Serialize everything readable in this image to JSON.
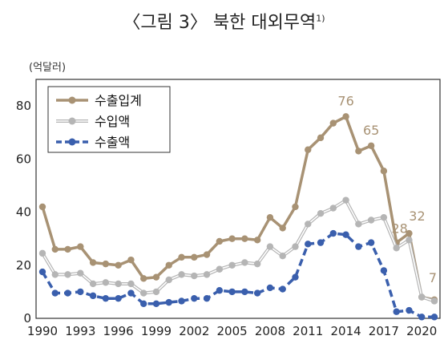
{
  "chart_data": {
    "type": "line",
    "title": "〈그림 3〉 북한 대외무역",
    "title_footnote": "1)",
    "unit_label": "(억달러)",
    "ylim": [
      0,
      90
    ],
    "y_ticks": [
      0,
      20,
      40,
      60,
      80
    ],
    "x": [
      1990,
      1991,
      1992,
      1993,
      1994,
      1995,
      1996,
      1997,
      1998,
      1999,
      2000,
      2001,
      2002,
      2003,
      2004,
      2005,
      2006,
      2007,
      2008,
      2009,
      2010,
      2011,
      2012,
      2013,
      2014,
      2015,
      2016,
      2017,
      2018,
      2019,
      2020,
      2021
    ],
    "x_ticks": [
      1990,
      1993,
      1996,
      1999,
      2002,
      2005,
      2008,
      2011,
      2014,
      2017,
      2020
    ],
    "series": [
      {
        "name": "수출입계",
        "color": "#a89274",
        "style": "solid",
        "values": [
          42,
          26,
          26,
          27,
          21,
          20.5,
          20,
          22,
          15,
          15.5,
          20,
          23,
          23,
          24,
          29,
          30,
          30,
          29.5,
          38,
          34,
          42,
          63.5,
          68,
          73.5,
          76,
          63,
          65,
          55.5,
          28.5,
          32,
          8,
          7
        ]
      },
      {
        "name": "수입액",
        "color": "#b5b5b5",
        "style": "double",
        "values": [
          24.5,
          16.5,
          16.5,
          17,
          13,
          13.5,
          13,
          13,
          9.5,
          10,
          14.5,
          16.5,
          16,
          16.5,
          18.5,
          20,
          21,
          20.5,
          27,
          23.5,
          27,
          35.5,
          39.5,
          41.5,
          44.5,
          35.5,
          37,
          38,
          26.5,
          29.5,
          8,
          6.5
        ]
      },
      {
        "name": "수출액",
        "color": "#3a5fad",
        "style": "dashed",
        "values": [
          17.5,
          9.5,
          9.5,
          10,
          8.5,
          7.5,
          7.5,
          9.5,
          5.5,
          5.5,
          6,
          6.5,
          7.5,
          7.5,
          10.5,
          10,
          10,
          9.5,
          11.5,
          11,
          15.5,
          28,
          28.5,
          32,
          31.5,
          27,
          28.5,
          18,
          2.5,
          3,
          0.5,
          0.5
        ]
      }
    ],
    "data_labels": [
      {
        "year": 2014,
        "value": 76,
        "text": "76"
      },
      {
        "year": 2016,
        "value": 65,
        "text": "65"
      },
      {
        "year": 2018,
        "value": 28,
        "text": "28"
      },
      {
        "year": 2019,
        "value": 32,
        "text": "32"
      },
      {
        "year": 2021,
        "value": 7,
        "text": "7"
      }
    ],
    "legend_position": "top-left",
    "grid": false
  }
}
